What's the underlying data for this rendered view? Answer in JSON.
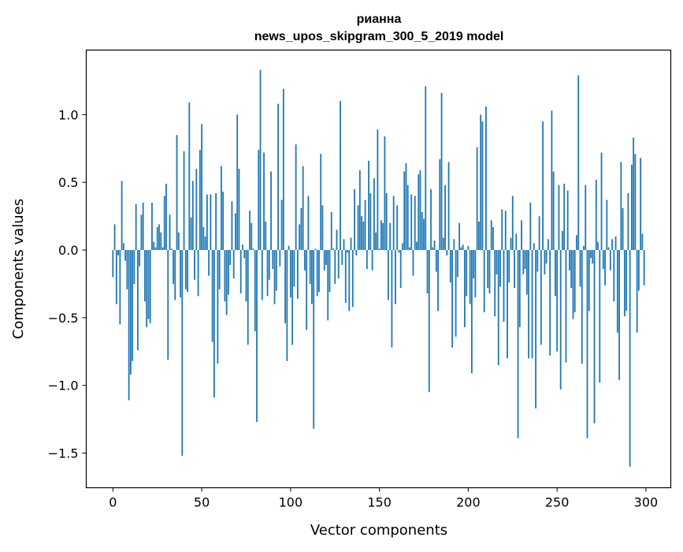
{
  "chart_data": {
    "type": "bar",
    "title": [
      "рианна",
      "news_upos_skipgram_300_5_2019 model"
    ],
    "xlabel": "Vector components",
    "ylabel": "Components values",
    "xlim": [
      -15,
      314
    ],
    "ylim": [
      -1.756,
      1.477
    ],
    "xticks": [
      0,
      50,
      100,
      150,
      200,
      250,
      300
    ],
    "xtick_labels": [
      "0",
      "50",
      "100",
      "150",
      "200",
      "250",
      "300"
    ],
    "yticks": [
      -1.5,
      -1.0,
      -0.5,
      0.0,
      0.5,
      1.0
    ],
    "ytick_labels": [
      "−1.5",
      "−1.0",
      "−0.5",
      "0.0",
      "0.5",
      "1.0"
    ],
    "grid": false,
    "bar_color": "#1f77b4",
    "bar_width": 0.8,
    "values": [
      -0.2,
      0.19,
      -0.4,
      -0.04,
      -0.55,
      0.51,
      0.05,
      -0.08,
      -0.29,
      -1.11,
      -0.92,
      -0.82,
      -0.25,
      0.34,
      -0.74,
      -0.12,
      0.26,
      0.35,
      -0.38,
      -0.57,
      -0.51,
      -0.54,
      0.35,
      0.06,
      0.02,
      0.17,
      0.19,
      0.13,
      0.02,
      0.4,
      0.49,
      -0.81,
      0.26,
      0.01,
      -0.25,
      -0.37,
      0.85,
      0.13,
      -0.35,
      -1.52,
      0.73,
      -0.29,
      -0.31,
      1.09,
      0.24,
      0.51,
      -0.22,
      0.6,
      -0.34,
      0.74,
      0.93,
      0.17,
      0.1,
      0.41,
      -0.19,
      0.41,
      -0.68,
      -1.09,
      0.42,
      -0.84,
      -0.29,
      0.62,
      0.43,
      -0.38,
      -0.48,
      -0.33,
      -0.11,
      0.36,
      -0.21,
      0.27,
      1.0,
      0.6,
      -0.32,
      0.04,
      -0.06,
      -0.38,
      -0.7,
      0.29,
      0.2,
      0.01,
      -0.6,
      -1.27,
      0.74,
      1.33,
      -0.37,
      0.72,
      0.21,
      -0.34,
      -0.22,
      0.58,
      -0.14,
      -0.4,
      -0.3,
      1.08,
      -0.12,
      0.37,
      1.19,
      -0.54,
      -0.82,
      0.03,
      -0.35,
      -0.7,
      -0.27,
      0.78,
      -0.36,
      0.19,
      0.31,
      0.62,
      -0.15,
      -0.59,
      0.4,
      -0.25,
      -0.4,
      -1.32,
      0.01,
      -0.34,
      -0.31,
      0.71,
      0.33,
      -0.15,
      -0.11,
      -0.52,
      -0.31,
      0.28,
      0.01,
      -0.25,
      0.15,
      -0.21,
      1.1,
      -0.11,
      0.08,
      -0.39,
      -0.02,
      -0.45,
      0.09,
      -0.42,
      0.45,
      -0.04,
      0.33,
      0.59,
      0.25,
      0.21,
      0.37,
      -0.14,
      0.66,
      0.42,
      -0.15,
      0.53,
      0.13,
      0.89,
      0.01,
      0.22,
      0.2,
      0.84,
      0.42,
      -0.37,
      0.2,
      -0.72,
      0.4,
      -0.4,
      0.33,
      -0.02,
      -0.28,
      0.05,
      0.58,
      0.64,
      0.48,
      0.02,
      0.41,
      -0.19,
      0.4,
      0.06,
      0.56,
      0.59,
      0.28,
      0.23,
      1.21,
      -0.32,
      -1.05,
      0.45,
      0.02,
      0.07,
      -0.16,
      -0.45,
      0.67,
      1.16,
      0.09,
      0.48,
      -0.04,
      0.65,
      -0.24,
      -0.72,
      0.08,
      -0.64,
      -0.2,
      0.2,
      0.02,
      0.04,
      -0.57,
      -0.34,
      0.03,
      -0.4,
      -0.91,
      -0.21,
      -0.35,
      0.76,
      0.21,
      1.0,
      0.95,
      -0.46,
      1.06,
      -0.28,
      -0.32,
      0.22,
      0.17,
      -0.49,
      -0.18,
      -0.85,
      -0.27,
      0.3,
      -0.53,
      0.29,
      -0.8,
      -0.24,
      0.09,
      0.4,
      -0.28,
      0.12,
      -1.39,
      -0.57,
      0.22,
      -0.18,
      -0.14,
      -0.33,
      -0.8,
      0.35,
      -0.8,
      0.05,
      -1.17,
      -0.16,
      0.25,
      -0.7,
      0.95,
      -0.18,
      -0.1,
      0.08,
      -0.78,
      1.03,
      0.58,
      -0.34,
      -0.75,
      0.48,
      -1.03,
      0.14,
      0.49,
      -0.83,
      0.44,
      -0.15,
      -0.28,
      -0.51,
      -0.46,
      0.11,
      1.29,
      -0.27,
      -0.84,
      0.03,
      0.48,
      -1.39,
      -0.45,
      -0.06,
      -0.1,
      -1.28,
      0.52,
      0.06,
      -0.98,
      0.72,
      -0.14,
      -0.26,
      0.37,
      0.02,
      -0.15,
      0.08,
      -0.38,
      0.1,
      -0.61,
      -0.96,
      0.65,
      0.31,
      -0.49,
      -0.45,
      0.42,
      -1.6,
      0.63,
      0.83,
      0.71,
      -0.61,
      -0.3,
      0.68,
      0.12,
      -0.26
    ]
  }
}
